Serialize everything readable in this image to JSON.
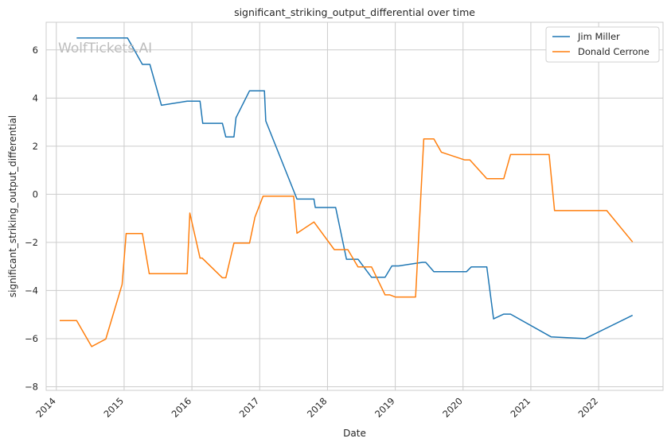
{
  "chart_data": {
    "type": "line",
    "title": "significant_striking_output_differential over time",
    "xlabel": "Date",
    "ylabel": "significant_striking_output_differential",
    "xlim": [
      2013.85,
      2022.95
    ],
    "ylim": [
      -8.15,
      7.15
    ],
    "x_ticks": [
      2014,
      2015,
      2016,
      2017,
      2018,
      2019,
      2020,
      2021,
      2022
    ],
    "y_ticks": [
      6,
      4,
      2,
      0,
      -2,
      -4,
      -6,
      -8
    ],
    "y_tick_labels": [
      "6",
      "4",
      "2",
      "0",
      "−2",
      "−4",
      "−6",
      "−8"
    ],
    "grid": true,
    "legend_position": "top-right",
    "watermark": "WolfTickets.AI",
    "series": [
      {
        "name": "Jim Miller",
        "color": "#1f77b4",
        "x": [
          2014.3,
          2015.05,
          2015.27,
          2015.38,
          2015.55,
          2015.93,
          2016.12,
          2016.16,
          2016.45,
          2016.5,
          2016.62,
          2016.65,
          2016.85,
          2017.07,
          2017.09,
          2017.55,
          2017.58,
          2017.8,
          2017.82,
          2018.12,
          2018.28,
          2018.45,
          2018.65,
          2018.85,
          2018.95,
          2019.05,
          2019.4,
          2019.45,
          2019.57,
          2020.05,
          2020.12,
          2020.35,
          2020.45,
          2020.6,
          2020.7,
          2021.3,
          2021.8,
          2022.5
        ],
        "y": [
          6.5,
          6.5,
          5.4,
          5.4,
          3.7,
          3.87,
          3.87,
          2.95,
          2.95,
          2.38,
          2.38,
          3.18,
          4.3,
          4.3,
          3.05,
          -0.2,
          -0.2,
          -0.2,
          -0.55,
          -0.55,
          -2.7,
          -2.7,
          -3.45,
          -3.45,
          -2.98,
          -2.98,
          -2.83,
          -2.83,
          -3.22,
          -3.22,
          -3.02,
          -3.02,
          -5.18,
          -4.98,
          -4.98,
          -5.93,
          -6.0,
          -5.03
        ]
      },
      {
        "name": "Donald Cerrone",
        "color": "#ff7f0e",
        "x": [
          2014.05,
          2014.3,
          2014.52,
          2014.73,
          2014.97,
          2015.03,
          2015.27,
          2015.37,
          2015.93,
          2015.97,
          2016.12,
          2016.15,
          2016.45,
          2016.5,
          2016.62,
          2016.65,
          2016.85,
          2016.93,
          2017.05,
          2017.5,
          2017.55,
          2017.8,
          2018.1,
          2018.2,
          2018.3,
          2018.45,
          2018.65,
          2018.85,
          2018.92,
          2019.0,
          2019.3,
          2019.42,
          2019.57,
          2019.68,
          2020.02,
          2020.1,
          2020.35,
          2020.6,
          2020.7,
          2021.27,
          2021.35,
          2022.12,
          2022.5
        ],
        "y": [
          -5.25,
          -5.25,
          -6.33,
          -6.02,
          -3.75,
          -1.63,
          -1.63,
          -3.3,
          -3.3,
          -0.78,
          -2.65,
          -2.65,
          -3.47,
          -3.47,
          -2.03,
          -2.03,
          -2.03,
          -0.95,
          -0.08,
          -0.08,
          -1.62,
          -1.15,
          -2.3,
          -2.3,
          -2.3,
          -3.02,
          -3.02,
          -4.18,
          -4.18,
          -4.27,
          -4.27,
          2.3,
          2.3,
          1.75,
          1.43,
          1.43,
          0.65,
          0.65,
          1.65,
          1.65,
          -0.68,
          -0.68,
          -1.98
        ]
      }
    ]
  }
}
